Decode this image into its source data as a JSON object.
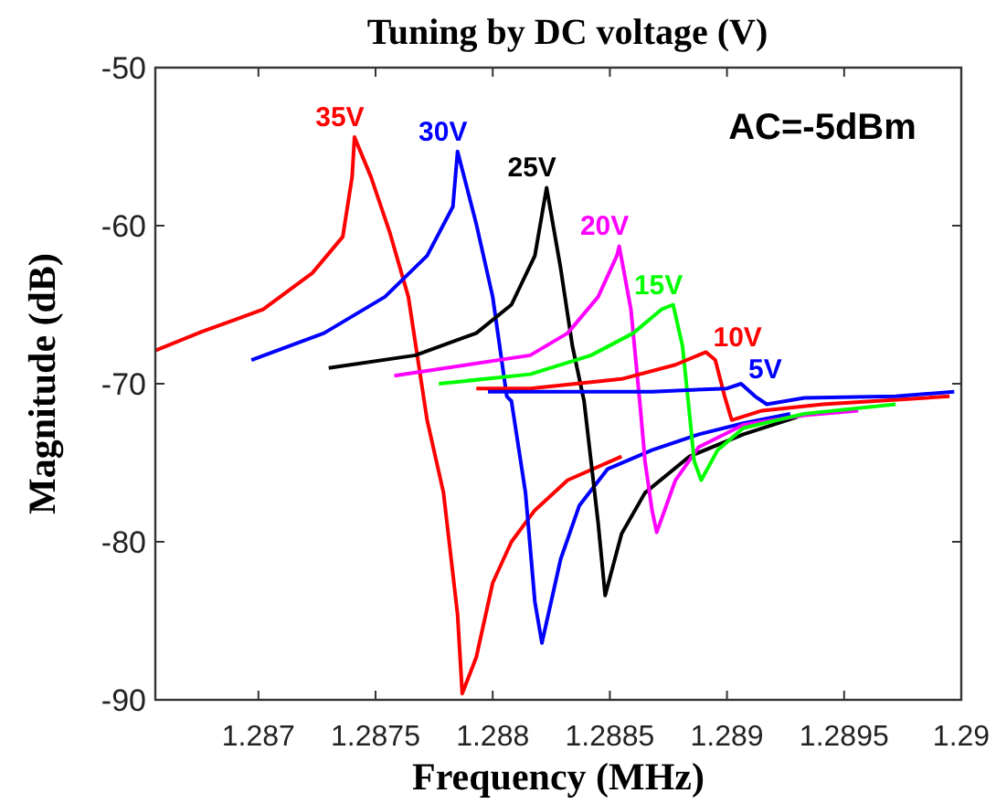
{
  "chart_data": {
    "type": "line",
    "title": "Tuning by DC voltage (V)",
    "xlabel": "Frequency (MHz)",
    "ylabel": "Magnitude (dB)",
    "annotations": [
      "AC=-5dBm"
    ],
    "xlim": [
      1.28656,
      1.29
    ],
    "xticks": [
      1.287,
      1.2875,
      1.288,
      1.2885,
      1.289,
      1.2895,
      1.29
    ],
    "ylim": [
      -90,
      -50
    ],
    "yticks": [
      -50,
      -60,
      -70,
      -80,
      -90
    ],
    "grid": false,
    "marker": "none",
    "line_style": "solid",
    "series": [
      {
        "name": "35V",
        "color": "#ff0000",
        "x": [
          1.28656,
          1.28676,
          1.28702,
          1.28723,
          1.28736,
          1.2874,
          1.28741,
          1.28748,
          1.28756,
          1.28764,
          1.28772,
          1.28779,
          1.28785,
          1.28787,
          1.28793,
          1.288,
          1.28808,
          1.28818,
          1.28832,
          1.28855
        ],
        "values": [
          -67.9,
          -66.7,
          -65.3,
          -63.0,
          -60.7,
          -56.9,
          -54.4,
          -56.9,
          -60.4,
          -64.5,
          -72.3,
          -76.9,
          -84.6,
          -89.6,
          -87.3,
          -82.6,
          -80.0,
          -78.0,
          -76.1,
          -74.6
        ]
      },
      {
        "name": "30V",
        "color": "#0000ff",
        "x": [
          1.28697,
          1.28728,
          1.28754,
          1.28772,
          1.28783,
          1.28785,
          1.28793,
          1.288,
          1.28806,
          1.28808,
          1.28814,
          1.28818,
          1.28821,
          1.28829,
          1.28837,
          1.28849,
          1.28868,
          1.28888,
          1.28907,
          1.28927
        ],
        "values": [
          -68.5,
          -66.8,
          -64.5,
          -61.9,
          -58.8,
          -55.3,
          -59.9,
          -64.5,
          -70.8,
          -71.1,
          -76.9,
          -83.8,
          -86.4,
          -81.1,
          -77.7,
          -75.4,
          -74.2,
          -73.2,
          -72.5,
          -71.9
        ]
      },
      {
        "name": "25V",
        "color": "#000000",
        "x": [
          1.2873,
          1.28767,
          1.28793,
          1.28808,
          1.28818,
          1.28823,
          1.28829,
          1.28834,
          1.28839,
          1.28845,
          1.28848,
          1.28855,
          1.28865,
          1.28884,
          1.28907,
          1.2893
        ],
        "values": [
          -69.0,
          -68.2,
          -66.8,
          -65.0,
          -61.9,
          -57.6,
          -62.7,
          -67.6,
          -71.1,
          -78.8,
          -83.4,
          -79.5,
          -76.9,
          -74.6,
          -73.2,
          -72.1
        ]
      },
      {
        "name": "20V",
        "color": "#ff00ff",
        "x": [
          1.28758,
          1.28816,
          1.28832,
          1.28845,
          1.28853,
          1.28854,
          1.28859,
          1.28863,
          1.28865,
          1.28868,
          1.2887,
          1.28878,
          1.28888,
          1.28907,
          1.28933,
          1.28956
        ],
        "values": [
          -69.5,
          -68.2,
          -66.8,
          -64.5,
          -61.9,
          -61.3,
          -65.3,
          -71.5,
          -74.9,
          -78.0,
          -79.4,
          -76.1,
          -74.0,
          -72.6,
          -72.0,
          -71.7
        ]
      },
      {
        "name": "15V",
        "color": "#00ff00",
        "x": [
          1.28777,
          1.28816,
          1.28842,
          1.2886,
          1.28872,
          1.28877,
          1.28881,
          1.28884,
          1.28886,
          1.28889,
          1.28896,
          1.28907,
          1.28933,
          1.28972
        ],
        "values": [
          -70.0,
          -69.4,
          -68.2,
          -66.8,
          -65.3,
          -65.0,
          -67.6,
          -71.9,
          -74.9,
          -76.1,
          -74.2,
          -72.8,
          -71.9,
          -71.3
        ]
      },
      {
        "name": "10V",
        "color": "#ff0000",
        "x": [
          1.28793,
          1.28816,
          1.28855,
          1.28878,
          1.28891,
          1.28895,
          1.28899,
          1.28902,
          1.28915,
          1.28941,
          1.28995
        ],
        "values": [
          -70.3,
          -70.3,
          -69.7,
          -68.8,
          -68.0,
          -68.5,
          -70.8,
          -72.3,
          -71.7,
          -71.3,
          -70.8
        ]
      },
      {
        "name": "5V",
        "color": "#0000ff",
        "x": [
          1.28798,
          1.28816,
          1.28868,
          1.289,
          1.28906,
          1.28912,
          1.28917,
          1.28933,
          1.28972,
          1.28997
        ],
        "values": [
          -70.5,
          -70.5,
          -70.5,
          -70.3,
          -70.0,
          -70.8,
          -71.3,
          -70.9,
          -70.8,
          -70.5
        ]
      }
    ]
  }
}
